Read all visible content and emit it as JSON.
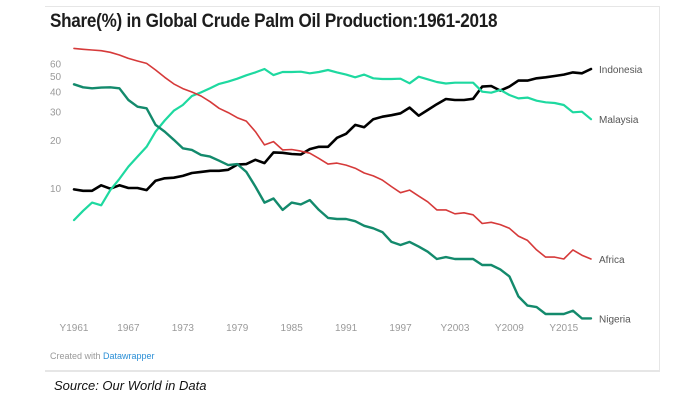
{
  "chart_data": {
    "type": "line",
    "title": "Share(%) in Global Crude Palm Oil Production:1961-2018",
    "xlabel": "",
    "ylabel": "",
    "yscale": "log",
    "ylim": [
      1.4,
      80
    ],
    "xlim": [
      1961,
      2018
    ],
    "grid": false,
    "legend": "inline labels at line ends (right)",
    "yticks": [
      10,
      20,
      30,
      40,
      50,
      60
    ],
    "xticks": [
      {
        "year": 1961,
        "label": "Y1961"
      },
      {
        "year": 1967,
        "label": "1967"
      },
      {
        "year": 1973,
        "label": "1973"
      },
      {
        "year": 1979,
        "label": "1979"
      },
      {
        "year": 1985,
        "label": "1985"
      },
      {
        "year": 1991,
        "label": "1991"
      },
      {
        "year": 1997,
        "label": "1997"
      },
      {
        "year": 2003,
        "label": "Y2003"
      },
      {
        "year": 2009,
        "label": "Y2009"
      },
      {
        "year": 2015,
        "label": "Y2015"
      }
    ],
    "x_start": 1961,
    "series": [
      {
        "name": "Indonesia",
        "color": "#000000",
        "width": 2.6,
        "values": [
          9.8,
          9.6,
          9.6,
          10.4,
          9.9,
          10.4,
          10.0,
          10.0,
          9.7,
          11.1,
          11.5,
          11.6,
          11.9,
          12.4,
          12.6,
          12.8,
          12.8,
          13.0,
          14.0,
          14.1,
          15.0,
          14.3,
          16.7,
          16.6,
          16.3,
          16.2,
          17.5,
          18.1,
          18.1,
          20.6,
          21.8,
          24.8,
          24.0,
          26.9,
          27.9,
          28.5,
          29.3,
          31.8,
          28.3,
          30.7,
          33.4,
          36.0,
          35.5,
          35.5,
          36.1,
          43.0,
          43.4,
          40.6,
          43.0,
          46.9,
          46.9,
          48.5,
          49.2,
          50.1,
          51.1,
          52.8,
          52.1,
          55.4
        ]
      },
      {
        "name": "Malaysia",
        "color": "#1ed9a0",
        "width": 2.2,
        "values": [
          6.3,
          7.2,
          8.1,
          7.8,
          9.7,
          11.4,
          13.6,
          15.7,
          18.1,
          22.5,
          26.4,
          30.4,
          33.0,
          37.6,
          39.6,
          42.0,
          44.7,
          46.2,
          48.2,
          50.6,
          52.8,
          55.4,
          50.8,
          53.1,
          53.1,
          53.3,
          52.1,
          53.1,
          54.6,
          52.8,
          51.1,
          49.2,
          51.1,
          48.5,
          48.0,
          48.0,
          48.2,
          45.1,
          49.6,
          47.8,
          46.0,
          45.0,
          45.5,
          45.5,
          45.5,
          40.0,
          39.4,
          41.0,
          38.1,
          36.3,
          36.7,
          35.1,
          34.3,
          34.0,
          33.0,
          29.7,
          30.0,
          26.9
        ]
      },
      {
        "name": "Africa",
        "color": "#d63a3a",
        "width": 1.6,
        "values": [
          74.6,
          73.6,
          72.9,
          72.1,
          70.5,
          67.8,
          64.6,
          62.2,
          60.1,
          54.6,
          49.2,
          44.7,
          41.8,
          39.8,
          37.6,
          34.6,
          31.5,
          29.6,
          27.5,
          26.2,
          22.5,
          18.6,
          19.5,
          17.3,
          17.4,
          17.0,
          16.5,
          15.3,
          14.1,
          14.3,
          13.9,
          13.3,
          12.4,
          11.9,
          11.2,
          10.2,
          9.35,
          9.7,
          8.9,
          8.2,
          7.3,
          7.3,
          6.9,
          7.0,
          6.8,
          6.0,
          6.1,
          5.9,
          5.6,
          5.0,
          4.7,
          4.1,
          3.7,
          3.7,
          3.6,
          4.1,
          3.8,
          3.6
        ]
      },
      {
        "name": "Nigeria",
        "color": "#138a6c",
        "width": 2.4,
        "values": [
          44.5,
          42.6,
          42.0,
          42.4,
          42.6,
          42.0,
          35.5,
          32.2,
          31.5,
          24.8,
          22.5,
          20.0,
          17.7,
          17.3,
          16.1,
          15.7,
          14.8,
          13.9,
          14.1,
          12.6,
          10.2,
          8.1,
          8.6,
          7.3,
          8.1,
          7.9,
          8.4,
          7.3,
          6.5,
          6.4,
          6.4,
          6.2,
          5.8,
          5.6,
          5.3,
          4.6,
          4.4,
          4.6,
          4.3,
          4.0,
          3.6,
          3.7,
          3.6,
          3.6,
          3.6,
          3.3,
          3.3,
          3.1,
          2.8,
          2.1,
          1.84,
          1.8,
          1.63,
          1.63,
          1.63,
          1.71,
          1.53,
          1.53
        ]
      }
    ]
  },
  "footer": {
    "credit_prefix": "Created with ",
    "credit_link": "Datawrapper",
    "source": "Source: Our World in Data"
  },
  "colors": {
    "axis_text": "#9a9a9a",
    "label_text": "#555555",
    "link": "#2b8fd6"
  }
}
